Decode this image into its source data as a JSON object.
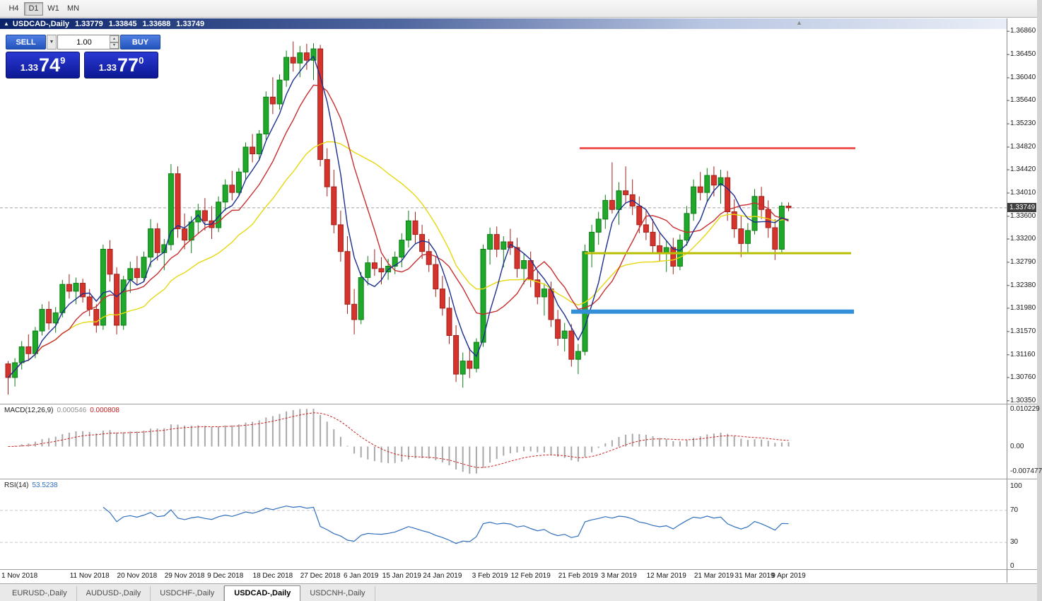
{
  "toolbar": {
    "timeframes": [
      {
        "label": "H4",
        "active": false
      },
      {
        "label": "D1",
        "active": true
      },
      {
        "label": "W1",
        "active": false
      },
      {
        "label": "MN",
        "active": false
      }
    ]
  },
  "window": {
    "symbol": "USDCAD-,Daily",
    "open": "1.33779",
    "high": "1.33845",
    "low": "1.33688",
    "close": "1.33749"
  },
  "trade_panel": {
    "sell_label": "SELL",
    "buy_label": "BUY",
    "volume": "1.00",
    "sell_price": {
      "prefix": "1.33",
      "big": "74",
      "sup": "9"
    },
    "buy_price": {
      "prefix": "1.33",
      "big": "77",
      "sup": "0"
    }
  },
  "price_axis": {
    "current": "1.33749",
    "values": [
      "1.36860",
      "1.36450",
      "1.36040",
      "1.35640",
      "1.35230",
      "1.34820",
      "1.34420",
      "1.34010",
      "1.33600",
      "1.33200",
      "1.32790",
      "1.32380",
      "1.31980",
      "1.31570",
      "1.31160",
      "1.30760",
      "1.30350"
    ]
  },
  "indicators": {
    "macd": {
      "label": "MACD(12,26,9)",
      "value_main": "0.000546",
      "value_signal": "0.000808",
      "axis_max": "0.010229",
      "axis_zero": "0.00",
      "axis_min": "-0.007477",
      "fast": 12,
      "slow": 26,
      "signal": 9
    },
    "rsi": {
      "label": "RSI(14)",
      "value": "53.5238",
      "period": 14,
      "levels": [
        70,
        30
      ],
      "axis": {
        "top": "100",
        "upper": "70",
        "lower": "30",
        "bottom": "0"
      }
    }
  },
  "time_axis": {
    "labels": [
      {
        "text": "1 Nov 2018",
        "bar": 2
      },
      {
        "text": "11 Nov 2018",
        "bar": 12
      },
      {
        "text": "20 Nov 2018",
        "bar": 19
      },
      {
        "text": "29 Nov 2018",
        "bar": 26
      },
      {
        "text": "9 Dec 2018",
        "bar": 32
      },
      {
        "text": "18 Dec 2018",
        "bar": 39
      },
      {
        "text": "27 Dec 2018",
        "bar": 46
      },
      {
        "text": "6 Jan 2019",
        "bar": 52
      },
      {
        "text": "15 Jan 2019",
        "bar": 58
      },
      {
        "text": "24 Jan 2019",
        "bar": 64
      },
      {
        "text": "3 Feb 2019",
        "bar": 71
      },
      {
        "text": "12 Feb 2019",
        "bar": 77
      },
      {
        "text": "21 Feb 2019",
        "bar": 84
      },
      {
        "text": "3 Mar 2019",
        "bar": 90
      },
      {
        "text": "12 Mar 2019",
        "bar": 97
      },
      {
        "text": "21 Mar 2019",
        "bar": 104
      },
      {
        "text": "31 Mar 2019",
        "bar": 110
      },
      {
        "text": "9 Apr 2019",
        "bar": 115
      }
    ]
  },
  "tabs": [
    {
      "label": "EURUSD-,Daily",
      "active": false
    },
    {
      "label": "AUDUSD-,Daily",
      "active": false
    },
    {
      "label": "USDCHF-,Daily",
      "active": false
    },
    {
      "label": "USDCAD-,Daily",
      "active": true
    },
    {
      "label": "USDCNH-,Daily",
      "active": false
    }
  ],
  "chart_data": {
    "type": "candlestick",
    "symbol": "USDCAD",
    "timeframe": "Daily",
    "y_range": [
      1.3031,
      1.369
    ],
    "ma_periods": {
      "fast": 5,
      "mid": 10,
      "slow": 21
    },
    "rays": [
      {
        "name": "resistance-red",
        "price": 1.348,
        "x1": 820,
        "x2": 1210,
        "width": 3,
        "color": "#ef5350"
      },
      {
        "name": "support-olive",
        "price": 1.3295,
        "x1": 827,
        "x2": 1204,
        "width": 3,
        "color": "#b8bf00"
      },
      {
        "name": "support-blue",
        "price": 1.3192,
        "x1": 808,
        "x2": 1208,
        "width": 6,
        "color": "#3390d8"
      }
    ],
    "ohlc": [
      [
        1.31,
        1.3105,
        1.3046,
        1.3076
      ],
      [
        1.3076,
        1.311,
        1.306,
        1.3102
      ],
      [
        1.3102,
        1.314,
        1.309,
        1.313
      ],
      [
        1.313,
        1.3152,
        1.3105,
        1.3118
      ],
      [
        1.3118,
        1.3165,
        1.311,
        1.3158
      ],
      [
        1.3158,
        1.3205,
        1.315,
        1.3196
      ],
      [
        1.3196,
        1.321,
        1.316,
        1.3172
      ],
      [
        1.3172,
        1.32,
        1.3155,
        1.319
      ],
      [
        1.319,
        1.3248,
        1.3182,
        1.324
      ],
      [
        1.324,
        1.3258,
        1.3215,
        1.3228
      ],
      [
        1.3228,
        1.3252,
        1.3205,
        1.3242
      ],
      [
        1.3242,
        1.325,
        1.3208,
        1.3218
      ],
      [
        1.3218,
        1.3232,
        1.3184,
        1.3196
      ],
      [
        1.3196,
        1.3205,
        1.3155,
        1.3168
      ],
      [
        1.3168,
        1.331,
        1.316,
        1.3302
      ],
      [
        1.3302,
        1.3318,
        1.3245,
        1.3258
      ],
      [
        1.3258,
        1.327,
        1.3152,
        1.3168
      ],
      [
        1.3168,
        1.3255,
        1.316,
        1.3248
      ],
      [
        1.3248,
        1.328,
        1.3225,
        1.3268
      ],
      [
        1.3268,
        1.329,
        1.324,
        1.3252
      ],
      [
        1.3252,
        1.3298,
        1.3245,
        1.3288
      ],
      [
        1.3288,
        1.3355,
        1.327,
        1.3338
      ],
      [
        1.3338,
        1.3348,
        1.3282,
        1.3296
      ],
      [
        1.3296,
        1.332,
        1.3265,
        1.331
      ],
      [
        1.331,
        1.3452,
        1.33,
        1.3435
      ],
      [
        1.3435,
        1.3448,
        1.3322,
        1.3338
      ],
      [
        1.3338,
        1.3365,
        1.3302,
        1.3318
      ],
      [
        1.3318,
        1.336,
        1.3295,
        1.335
      ],
      [
        1.335,
        1.3382,
        1.333,
        1.337
      ],
      [
        1.337,
        1.3392,
        1.3335,
        1.3352
      ],
      [
        1.3352,
        1.3378,
        1.332,
        1.334
      ],
      [
        1.334,
        1.3395,
        1.3332,
        1.3385
      ],
      [
        1.3385,
        1.3425,
        1.337,
        1.3415
      ],
      [
        1.3415,
        1.344,
        1.3388,
        1.3402
      ],
      [
        1.3402,
        1.3445,
        1.3395,
        1.3438
      ],
      [
        1.3438,
        1.349,
        1.3425,
        1.3482
      ],
      [
        1.3482,
        1.3505,
        1.3455,
        1.347
      ],
      [
        1.347,
        1.3512,
        1.3458,
        1.3505
      ],
      [
        1.3505,
        1.358,
        1.3495,
        1.357
      ],
      [
        1.357,
        1.3605,
        1.354,
        1.3558
      ],
      [
        1.3558,
        1.361,
        1.3548,
        1.36
      ],
      [
        1.36,
        1.3652,
        1.3588,
        1.364
      ],
      [
        1.364,
        1.3668,
        1.3615,
        1.363
      ],
      [
        1.363,
        1.366,
        1.3605,
        1.3648
      ],
      [
        1.3648,
        1.3664,
        1.3618,
        1.3635
      ],
      [
        1.3635,
        1.3665,
        1.36,
        1.3655
      ],
      [
        1.3655,
        1.3662,
        1.3448,
        1.346
      ],
      [
        1.346,
        1.348,
        1.3395,
        1.3412
      ],
      [
        1.3412,
        1.3442,
        1.333,
        1.3345
      ],
      [
        1.3345,
        1.337,
        1.328,
        1.3298
      ],
      [
        1.3298,
        1.3325,
        1.3188,
        1.3205
      ],
      [
        1.3205,
        1.3232,
        1.3152,
        1.3178
      ],
      [
        1.3178,
        1.3262,
        1.317,
        1.3252
      ],
      [
        1.3252,
        1.329,
        1.3238,
        1.3278
      ],
      [
        1.3278,
        1.3302,
        1.3255,
        1.3268
      ],
      [
        1.3268,
        1.3288,
        1.324,
        1.3262
      ],
      [
        1.3262,
        1.3285,
        1.3248,
        1.3272
      ],
      [
        1.3272,
        1.3298,
        1.3258,
        1.3288
      ],
      [
        1.3288,
        1.333,
        1.327,
        1.3318
      ],
      [
        1.3318,
        1.337,
        1.3305,
        1.3352
      ],
      [
        1.3352,
        1.3368,
        1.3312,
        1.3328
      ],
      [
        1.3328,
        1.3345,
        1.3285,
        1.3298
      ],
      [
        1.3298,
        1.332,
        1.3262,
        1.3275
      ],
      [
        1.3275,
        1.329,
        1.3218,
        1.3232
      ],
      [
        1.3232,
        1.3255,
        1.3185,
        1.3198
      ],
      [
        1.3198,
        1.3218,
        1.3135,
        1.315
      ],
      [
        1.315,
        1.3168,
        1.3068,
        1.3082
      ],
      [
        1.3082,
        1.312,
        1.3058,
        1.3105
      ],
      [
        1.3105,
        1.3128,
        1.3075,
        1.3092
      ],
      [
        1.3092,
        1.3145,
        1.3085,
        1.3138
      ],
      [
        1.3138,
        1.331,
        1.313,
        1.3302
      ],
      [
        1.3302,
        1.334,
        1.3275,
        1.3328
      ],
      [
        1.3328,
        1.3342,
        1.3288,
        1.3302
      ],
      [
        1.3302,
        1.3325,
        1.327,
        1.3315
      ],
      [
        1.3315,
        1.3338,
        1.3292,
        1.3305
      ],
      [
        1.3305,
        1.3322,
        1.3252,
        1.3268
      ],
      [
        1.3268,
        1.3295,
        1.324,
        1.3282
      ],
      [
        1.3282,
        1.3298,
        1.3235,
        1.3248
      ],
      [
        1.3248,
        1.3265,
        1.3205,
        1.3218
      ],
      [
        1.3218,
        1.3242,
        1.3185,
        1.3232
      ],
      [
        1.3232,
        1.3245,
        1.3165,
        1.3178
      ],
      [
        1.3178,
        1.3195,
        1.3132,
        1.3145
      ],
      [
        1.3145,
        1.3172,
        1.3122,
        1.3158
      ],
      [
        1.3158,
        1.317,
        1.3095,
        1.3108
      ],
      [
        1.3108,
        1.3135,
        1.3082,
        1.3122
      ],
      [
        1.3122,
        1.331,
        1.3115,
        1.3298
      ],
      [
        1.3298,
        1.3345,
        1.327,
        1.3332
      ],
      [
        1.3332,
        1.3368,
        1.331,
        1.3355
      ],
      [
        1.3355,
        1.3398,
        1.3338,
        1.3388
      ],
      [
        1.3388,
        1.3455,
        1.3365,
        1.3372
      ],
      [
        1.3372,
        1.342,
        1.3345,
        1.3405
      ],
      [
        1.3405,
        1.3448,
        1.3382,
        1.3398
      ],
      [
        1.3398,
        1.3425,
        1.3362,
        1.3378
      ],
      [
        1.3378,
        1.3395,
        1.333,
        1.3345
      ],
      [
        1.3345,
        1.3372,
        1.3318,
        1.3332
      ],
      [
        1.3332,
        1.3355,
        1.3295,
        1.3308
      ],
      [
        1.3308,
        1.333,
        1.328,
        1.3295
      ],
      [
        1.3295,
        1.3318,
        1.3262,
        1.3305
      ],
      [
        1.3305,
        1.3322,
        1.3258,
        1.3272
      ],
      [
        1.3272,
        1.3328,
        1.3265,
        1.3318
      ],
      [
        1.3318,
        1.3378,
        1.3308,
        1.3365
      ],
      [
        1.3365,
        1.3425,
        1.3352,
        1.3412
      ],
      [
        1.3412,
        1.3438,
        1.3388,
        1.3402
      ],
      [
        1.3402,
        1.3445,
        1.3385,
        1.3432
      ],
      [
        1.3432,
        1.3448,
        1.3395,
        1.3415
      ],
      [
        1.3415,
        1.3442,
        1.3382,
        1.3428
      ],
      [
        1.3428,
        1.344,
        1.3352,
        1.3368
      ],
      [
        1.3368,
        1.339,
        1.3322,
        1.3338
      ],
      [
        1.3338,
        1.3362,
        1.3288,
        1.3312
      ],
      [
        1.3312,
        1.3348,
        1.3295,
        1.3335
      ],
      [
        1.3335,
        1.3408,
        1.3328,
        1.3395
      ],
      [
        1.3395,
        1.3412,
        1.3355,
        1.3372
      ],
      [
        1.3372,
        1.3388,
        1.3322,
        1.334
      ],
      [
        1.334,
        1.3355,
        1.3283,
        1.3302
      ],
      [
        1.3302,
        1.3385,
        1.3295,
        1.3378
      ],
      [
        1.33779,
        1.33845,
        1.33688,
        1.33749
      ]
    ]
  },
  "colors": {
    "candle_up": "#1fa829",
    "candle_up_border": "#0e7d17",
    "candle_down": "#d6332c",
    "candle_down_border": "#9f221c",
    "ma_fast": "#1b2f8e",
    "ma_mid": "#c62f2f",
    "ma_slow": "#e6d80e",
    "macd_hist": "#a8a8a8",
    "macd_signal": "#cc2222",
    "rsi_line": "#2f6fbd",
    "rsi_level": "#c8c8c8",
    "bid_line": "#a0a0a0",
    "button_blue": "#2a62c8",
    "panel_blue": "#1320a8"
  }
}
